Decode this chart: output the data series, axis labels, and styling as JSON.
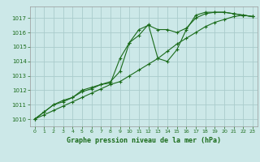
{
  "background_color": "#cce8e8",
  "grid_color": "#aacccc",
  "line_color": "#1a6b1a",
  "label_color": "#1a6b1a",
  "xlabel": "Graphe pression niveau de la mer (hPa)",
  "xlim": [
    -0.5,
    23.5
  ],
  "ylim": [
    1009.5,
    1017.8
  ],
  "yticks": [
    1010,
    1011,
    1012,
    1013,
    1014,
    1015,
    1016,
    1017
  ],
  "xticks": [
    0,
    1,
    2,
    3,
    4,
    5,
    6,
    7,
    8,
    9,
    10,
    11,
    12,
    13,
    14,
    15,
    16,
    17,
    18,
    19,
    20,
    21,
    22,
    23
  ],
  "series1_x": [
    0,
    1,
    2,
    3,
    4,
    5,
    6,
    7,
    8,
    9,
    10,
    11,
    12,
    13,
    14,
    15,
    16,
    17,
    18,
    19,
    20,
    21,
    22,
    23
  ],
  "series1_y": [
    1010.0,
    1010.3,
    1010.6,
    1010.9,
    1011.2,
    1011.5,
    1011.8,
    1012.1,
    1012.4,
    1012.6,
    1013.0,
    1013.4,
    1013.8,
    1014.2,
    1014.7,
    1015.2,
    1015.6,
    1016.0,
    1016.4,
    1016.7,
    1016.9,
    1017.1,
    1017.2,
    1017.1
  ],
  "series2_x": [
    0,
    1,
    2,
    3,
    4,
    5,
    6,
    7,
    8,
    9,
    10,
    11,
    12,
    13,
    14,
    15,
    16,
    17,
    18,
    19,
    20,
    21,
    22,
    23
  ],
  "series2_y": [
    1010.0,
    1010.5,
    1011.0,
    1011.2,
    1011.5,
    1011.9,
    1012.1,
    1012.4,
    1012.6,
    1013.3,
    1015.3,
    1016.2,
    1016.5,
    1016.2,
    1016.2,
    1016.0,
    1016.3,
    1017.0,
    1017.3,
    1017.4,
    1017.4,
    1017.3,
    1017.2,
    1017.1
  ],
  "series3_x": [
    0,
    1,
    2,
    3,
    4,
    5,
    6,
    7,
    8,
    9,
    10,
    11,
    12,
    13,
    14,
    15,
    16,
    17,
    18,
    19,
    20,
    21,
    22,
    23
  ],
  "series3_y": [
    1010.0,
    1010.5,
    1011.0,
    1011.3,
    1011.5,
    1012.0,
    1012.2,
    1012.4,
    1012.5,
    1014.2,
    1015.3,
    1015.8,
    1016.55,
    1014.2,
    1014.0,
    1014.8,
    1016.2,
    1017.2,
    1017.4,
    1017.4,
    1017.4,
    1017.3,
    1017.2,
    1017.1
  ]
}
